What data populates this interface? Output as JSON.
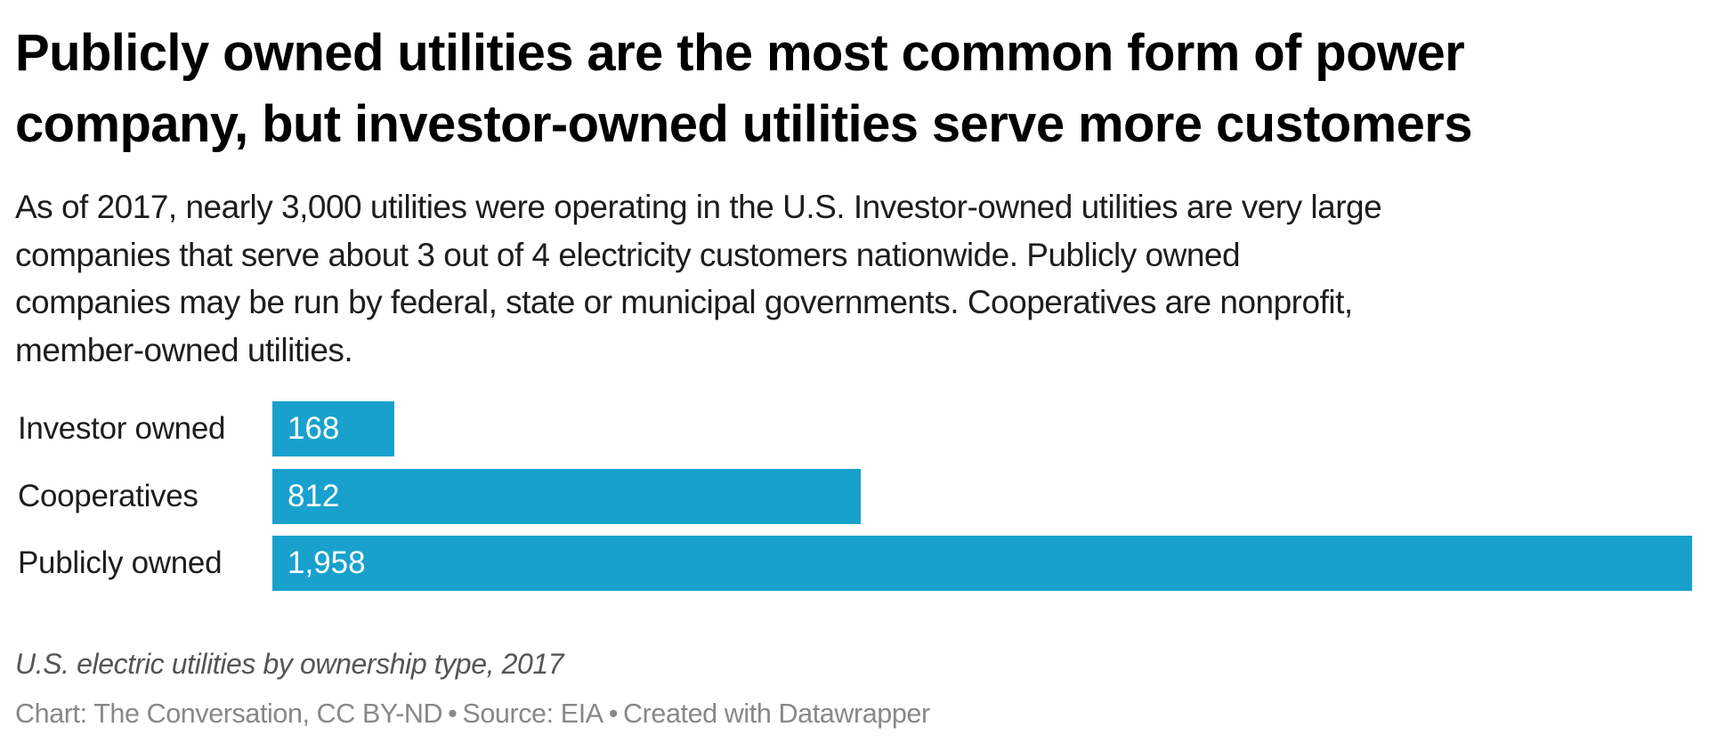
{
  "header": {
    "title_lines": [
      "Publicly owned utilities are the most common form of power",
      "company, but investor-owned utilities serve more customers"
    ],
    "subtitle_lines": [
      "As of 2017, nearly 3,000 utilities were operating in the U.S. Investor-owned utilities are very large",
      "companies that serve about 3 out of 4 electricity customers nationwide. Publicly owned",
      "companies may be run by federal, state or municipal governments. Cooperatives are nonprofit,",
      "member-owned utilities."
    ]
  },
  "chart_data": {
    "type": "bar",
    "orientation": "horizontal",
    "title": "Publicly owned utilities are the most common form of power company, but investor-owned utilities serve more customers",
    "subtitle": "As of 2017, nearly 3,000 utilities were operating in the U.S. Investor-owned utilities are very large companies that serve about 3 out of 4 electricity customers nationwide. Publicly owned companies may be run by federal, state or municipal governments. Cooperatives are nonprofit, member-owned utilities.",
    "categories": [
      "Investor owned",
      "Cooperatives",
      "Publicly owned"
    ],
    "values": [
      168,
      812,
      1958
    ],
    "value_labels": [
      "168",
      "812",
      "1,958"
    ],
    "xlabel": "",
    "ylabel": "",
    "xlim": [
      0,
      1958
    ],
    "grid": false,
    "legend": null,
    "bar_color": "#18a1cd",
    "notes": "U.S. electric utilities by ownership type, 2017"
  },
  "footer": {
    "notes": "U.S. electric utilities by ownership type, 2017",
    "source_parts": [
      "Chart: The Conversation, CC BY-ND",
      "Source: EIA",
      "Created with Datawrapper"
    ],
    "separator": "•"
  },
  "colors": {
    "bar": "#18a1cd",
    "title": "#000000",
    "body": "#1d1d1d",
    "notes": "#555555",
    "source": "#888888"
  }
}
